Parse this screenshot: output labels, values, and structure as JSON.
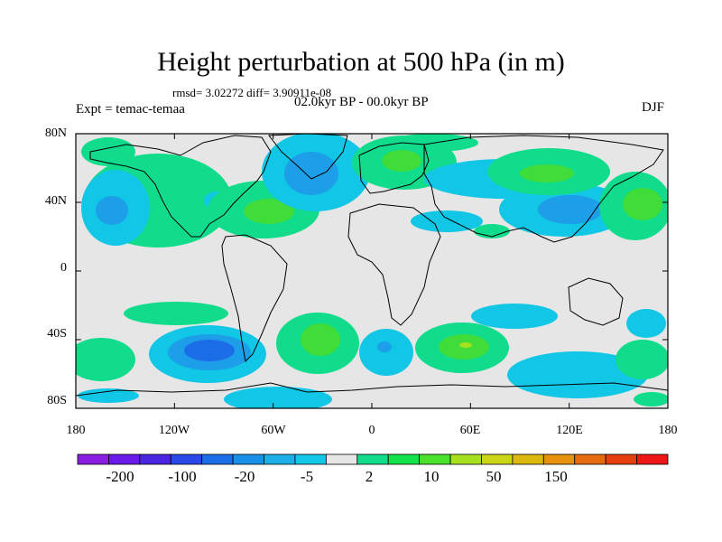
{
  "title": "Height perturbation at 500 hPa (in m)",
  "stats_text": "rmsd= 3.02272 diff= 3.90911e-08",
  "period_text": "02.0kyr BP - 00.0kyr BP",
  "experiment_text": "Expt = temac-temaa",
  "season_text": "DJF",
  "lat_labels": [
    "80N",
    "40N",
    "0",
    "40S",
    "80S"
  ],
  "lon_labels": [
    "180",
    "120W",
    "60W",
    "0",
    "60E",
    "120E",
    "180"
  ],
  "colorbar": {
    "labels": [
      "-200",
      "-100",
      "-20",
      "-5",
      "2",
      "10",
      "50",
      "150"
    ],
    "colors": [
      "#8a1de0",
      "#6a1be6",
      "#4a26e0",
      "#2a48e6",
      "#1c6de8",
      "#1690e8",
      "#1cb0e6",
      "#12c6e6",
      "#e6e6e6",
      "#10dc8c",
      "#14e24a",
      "#48e22a",
      "#a6e01e",
      "#cad616",
      "#dcb80e",
      "#e6920c",
      "#e66a0e",
      "#e6400e",
      "#ec1818"
    ]
  },
  "map_colors": {
    "background": "#e6e6e6",
    "pos_light": "#10dc8c",
    "pos_mid": "#40dc3a",
    "pos_high": "#a6e01e",
    "neg_light": "#12c6e6",
    "neg_mid": "#1c9ee8",
    "neg_strong": "#1c6de8"
  }
}
